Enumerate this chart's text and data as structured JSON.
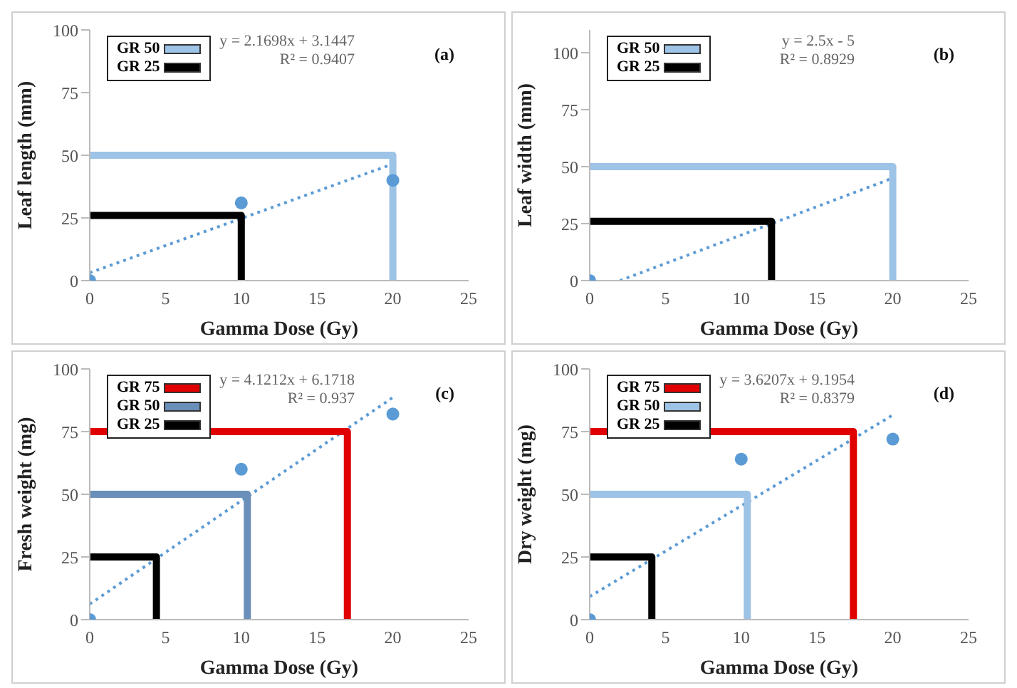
{
  "chart_data": [
    {
      "type": "scatter",
      "xlabel": "Gamma Dose (Gy)",
      "ylabel": "Leaf length (mm)",
      "annotations": [
        "(a)",
        "y = 2.1698x + 3.1447",
        "R² = 0.9407"
      ],
      "xlim": [
        0,
        25
      ],
      "xticks": [
        0,
        5,
        10,
        15,
        20,
        25
      ],
      "ylim": [
        0,
        100
      ],
      "yticks": [
        0,
        25,
        50,
        75,
        100
      ],
      "grid": false,
      "legend": "top left",
      "series": [
        {
          "color": "#5b9bd5",
          "marker": "circle",
          "x": [
            0,
            10,
            20
          ],
          "values": [
            0,
            31,
            40
          ]
        },
        {
          "type": "line",
          "color": "#5b9bd5",
          "line_style": "dotted",
          "x": [
            0,
            20
          ],
          "values": [
            3.1,
            46.5
          ]
        },
        {
          "type": "line",
          "name": "GR 50",
          "color": "#9dc3e6",
          "line_style": "solid",
          "x": [
            0,
            20,
            20
          ],
          "values": [
            50,
            50,
            0
          ]
        },
        {
          "type": "line",
          "name": "GR 25",
          "color": "#000000",
          "line_style": "solid",
          "x": [
            0,
            10,
            10
          ],
          "values": [
            26,
            26,
            0
          ]
        }
      ]
    },
    {
      "type": "scatter",
      "xlabel": "Gamma Dose (Gy)",
      "ylabel": "Leaf width (mm)",
      "annotations": [
        "(b)",
        "y = 2.5x - 5",
        "R² = 0.8929"
      ],
      "xlim": [
        0,
        25
      ],
      "xticks": [
        0,
        5,
        10,
        15,
        20,
        25
      ],
      "ylim": [
        0,
        110
      ],
      "yticks": [
        0,
        25,
        50,
        75,
        100
      ],
      "grid": false,
      "legend": "top left",
      "series": [
        {
          "color": "#5b9bd5",
          "marker": "circle",
          "x": [
            0
          ],
          "values": [
            0
          ]
        },
        {
          "type": "line",
          "color": "#5b9bd5",
          "line_style": "dotted",
          "x": [
            2,
            20
          ],
          "values": [
            0,
            45
          ]
        },
        {
          "type": "line",
          "name": "GR 50",
          "color": "#9dc3e6",
          "line_style": "solid",
          "x": [
            0,
            20,
            20
          ],
          "values": [
            50,
            50,
            0
          ]
        },
        {
          "type": "line",
          "name": "GR 25",
          "color": "#000000",
          "line_style": "solid",
          "x": [
            0,
            12,
            12
          ],
          "values": [
            26,
            26,
            0
          ]
        }
      ]
    },
    {
      "type": "scatter",
      "xlabel": "Gamma Dose (Gy)",
      "ylabel": "Fresh weight (mg)",
      "annotations": [
        "(c)",
        "y = 4.1212x + 6.1718",
        "R² = 0.937"
      ],
      "xlim": [
        0,
        25
      ],
      "xticks": [
        0,
        5,
        10,
        15,
        20,
        25
      ],
      "ylim": [
        0,
        100
      ],
      "yticks": [
        0,
        25,
        50,
        75,
        100
      ],
      "grid": false,
      "legend": "top left",
      "series": [
        {
          "color": "#5b9bd5",
          "marker": "circle",
          "x": [
            0,
            10,
            20
          ],
          "values": [
            0,
            60,
            82
          ]
        },
        {
          "type": "line",
          "color": "#5b9bd5",
          "line_style": "dotted",
          "x": [
            0,
            20
          ],
          "values": [
            6.2,
            88.6
          ]
        },
        {
          "type": "line",
          "name": "GR 75",
          "color": "#e00000",
          "line_style": "solid",
          "x": [
            0,
            17,
            17
          ],
          "values": [
            75,
            75,
            0
          ]
        },
        {
          "type": "line",
          "name": "GR 50",
          "color": "#6a8fb8",
          "line_style": "solid",
          "x": [
            0,
            10.4,
            10.4
          ],
          "values": [
            50,
            50,
            0
          ]
        },
        {
          "type": "line",
          "name": "GR 25",
          "color": "#000000",
          "line_style": "solid",
          "x": [
            0,
            4.4,
            4.4
          ],
          "values": [
            25,
            25,
            0
          ]
        }
      ]
    },
    {
      "type": "scatter",
      "xlabel": "Gamma Dose (Gy)",
      "ylabel": "Dry weight (mg)",
      "annotations": [
        "(d)",
        "y = 3.6207x + 9.1954",
        "R² = 0.8379"
      ],
      "xlim": [
        0,
        25
      ],
      "xticks": [
        0,
        5,
        10,
        15,
        20,
        25
      ],
      "ylim": [
        0,
        100
      ],
      "yticks": [
        0,
        25,
        50,
        75,
        100
      ],
      "grid": false,
      "legend": "top left",
      "series": [
        {
          "color": "#5b9bd5",
          "marker": "circle",
          "x": [
            0,
            10,
            20
          ],
          "values": [
            0,
            64,
            72
          ]
        },
        {
          "type": "line",
          "color": "#5b9bd5",
          "line_style": "dotted",
          "x": [
            0,
            20
          ],
          "values": [
            9.2,
            81.6
          ]
        },
        {
          "type": "line",
          "name": "GR 75",
          "color": "#e00000",
          "line_style": "solid",
          "x": [
            0,
            17.4,
            17.4
          ],
          "values": [
            75,
            75,
            0
          ]
        },
        {
          "type": "line",
          "name": "GR 50",
          "color": "#9dc3e6",
          "line_style": "solid",
          "x": [
            0,
            10.4,
            10.4
          ],
          "values": [
            50,
            50,
            0
          ]
        },
        {
          "type": "line",
          "name": "GR 25",
          "color": "#000000",
          "line_style": "solid",
          "x": [
            0,
            4.1,
            4.1
          ],
          "values": [
            25,
            25,
            0
          ]
        }
      ]
    }
  ]
}
